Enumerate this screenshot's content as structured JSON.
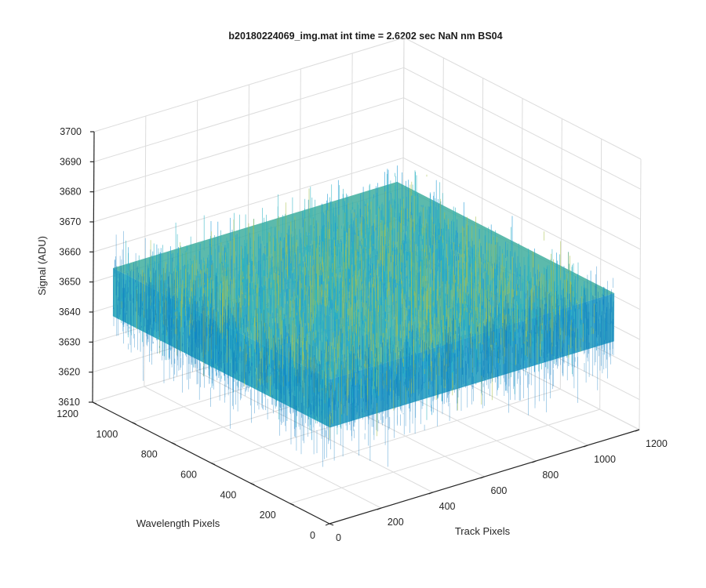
{
  "chart_data": {
    "type": "surface",
    "title": "b20180224069_img.mat int time = 2.6202 sec  NaN nm BS04",
    "xlabel": "Track Pixels",
    "ylabel": "Wavelength Pixels",
    "zlabel": "Signal (ADU)",
    "xlim": [
      0,
      1200
    ],
    "ylim": [
      0,
      1200
    ],
    "zlim": [
      3610,
      3700
    ],
    "x_ticks": [
      "0",
      "200",
      "400",
      "600",
      "800",
      "1000",
      "1200"
    ],
    "y_ticks": [
      "0",
      "200",
      "400",
      "600",
      "800",
      "1000",
      "1200"
    ],
    "z_ticks": [
      "3610",
      "3620",
      "3630",
      "3640",
      "3650",
      "3660",
      "3670",
      "3680",
      "3690",
      "3700"
    ],
    "grid": true,
    "surface": {
      "x_range": [
        0,
        1100
      ],
      "y_range": [
        0,
        1100
      ],
      "mean_signal": 3650,
      "noise_range": [
        3615,
        3690
      ],
      "colormap": "parula",
      "colors": [
        "#0072bd",
        "#1c9ad6",
        "#27b1c2",
        "#4ec08a",
        "#a8c04a",
        "#e6c83b"
      ]
    }
  }
}
